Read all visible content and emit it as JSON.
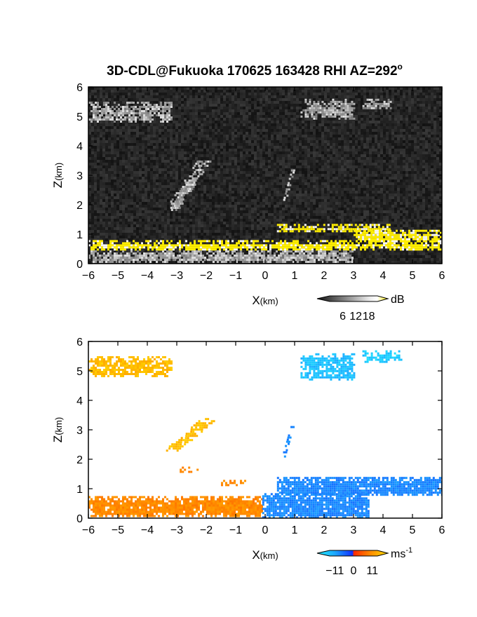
{
  "title": "3D-CDL@Fukuoka 170625 163428 RHI AZ=292",
  "title_degree": "o",
  "chart_data": [
    {
      "type": "heatmap",
      "quantity": "reflectivity",
      "xlabel": "X",
      "xlabel_unit": "(km)",
      "ylabel": "Z",
      "ylabel_unit": "(km)",
      "xlim": [
        -6,
        6
      ],
      "ylim": [
        0,
        6
      ],
      "xticks": [
        "-6",
        "-5",
        "-4",
        "-3",
        "-2",
        "-1",
        "0",
        "1",
        "2",
        "3",
        "4",
        "5",
        "6"
      ],
      "yticks": [
        "0",
        "1",
        "2",
        "3",
        "4",
        "5",
        "6"
      ],
      "colorbar": {
        "unit": "dB",
        "ticks": [
          "6",
          "12",
          "18"
        ],
        "range": [
          0,
          22
        ]
      },
      "colors": {
        "background": "#1c1c1c",
        "strong": "#ffee00",
        "weak": "#bdbdbd"
      },
      "features": [
        {
          "kind": "layer",
          "x": [
            -6,
            6
          ],
          "z": [
            0.45,
            0.8
          ],
          "level": "strong"
        },
        {
          "kind": "layer",
          "x": [
            0.4,
            4.2
          ],
          "z": [
            1.1,
            1.35
          ],
          "level": "strong"
        },
        {
          "kind": "layer",
          "x": [
            3.0,
            6.0
          ],
          "z": [
            0.75,
            1.15
          ],
          "level": "strong"
        },
        {
          "kind": "layer",
          "x": [
            -6,
            3
          ],
          "z": [
            0.05,
            0.45
          ],
          "level": "weak"
        },
        {
          "kind": "cloud",
          "x": [
            -6,
            -3.2
          ],
          "z": [
            4.8,
            5.5
          ],
          "level": "weak"
        },
        {
          "kind": "cloud",
          "x": [
            1.2,
            3.0
          ],
          "z": [
            4.9,
            5.6
          ],
          "level": "weak"
        },
        {
          "kind": "cloud",
          "x": [
            3.3,
            4.3
          ],
          "z": [
            5.3,
            5.6
          ],
          "level": "weak"
        },
        {
          "kind": "streak",
          "x": [
            -3.3,
            -1.9
          ],
          "z": [
            1.8,
            3.5
          ],
          "level": "weak"
        },
        {
          "kind": "streak",
          "x": [
            0.6,
            1.0
          ],
          "z": [
            2.0,
            3.2
          ],
          "level": "weak"
        }
      ]
    },
    {
      "type": "heatmap",
      "quantity": "doppler velocity",
      "xlabel": "X",
      "xlabel_unit": "(km)",
      "ylabel": "Z",
      "ylabel_unit": "(km)",
      "xlim": [
        -6,
        6
      ],
      "ylim": [
        0,
        6
      ],
      "xticks": [
        "-6",
        "-5",
        "-4",
        "-3",
        "-2",
        "-1",
        "0",
        "1",
        "2",
        "3",
        "4",
        "5",
        "6"
      ],
      "yticks": [
        "0",
        "1",
        "2",
        "3",
        "4",
        "5",
        "6"
      ],
      "colorbar": {
        "unit": "ms",
        "unit_exp": "-1",
        "ticks": [
          "−11",
          "0",
          "11"
        ],
        "range": [
          -14,
          14
        ]
      },
      "colors": {
        "background": "#ffffff",
        "positive_low": "#ff3d00",
        "positive_high": "#ffd600",
        "negative_low": "#1040ff",
        "negative_high": "#20e8ff"
      },
      "features": [
        {
          "kind": "layer",
          "x": [
            -6,
            -0.1
          ],
          "z": [
            0.05,
            0.75
          ],
          "velocity": 6
        },
        {
          "kind": "layer",
          "x": [
            -0.1,
            3.5
          ],
          "z": [
            0.05,
            0.85
          ],
          "velocity": -5
        },
        {
          "kind": "layer",
          "x": [
            0.4,
            6.0
          ],
          "z": [
            0.8,
            1.4
          ],
          "velocity": -5
        },
        {
          "kind": "cloud",
          "x": [
            -6,
            -3.2
          ],
          "z": [
            4.8,
            5.5
          ],
          "velocity": 10
        },
        {
          "kind": "cloud",
          "x": [
            1.2,
            3.0
          ],
          "z": [
            4.7,
            5.6
          ],
          "velocity": -9
        },
        {
          "kind": "cloud",
          "x": [
            3.3,
            4.6
          ],
          "z": [
            5.3,
            5.7
          ],
          "velocity": -10
        },
        {
          "kind": "streak",
          "x": [
            -3.3,
            -1.7
          ],
          "z": [
            2.3,
            3.4
          ],
          "velocity": 10
        },
        {
          "kind": "streak",
          "x": [
            0.6,
            1.0
          ],
          "z": [
            2.1,
            3.2
          ],
          "velocity": -5
        },
        {
          "kind": "patch",
          "x": [
            -2.9,
            -2.3
          ],
          "z": [
            1.6,
            1.75
          ],
          "velocity": 6
        },
        {
          "kind": "patch",
          "x": [
            -1.5,
            -0.7
          ],
          "z": [
            1.15,
            1.3
          ],
          "velocity": 6
        }
      ]
    }
  ]
}
